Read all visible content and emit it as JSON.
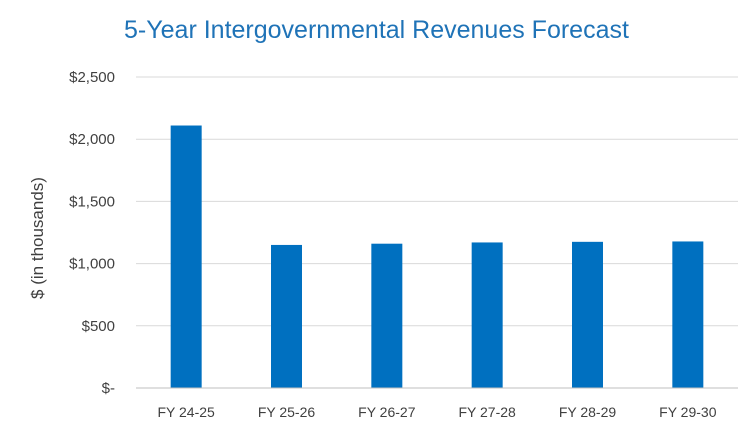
{
  "chart_data": {
    "type": "bar",
    "title": "5-Year Intergovernmental Revenues Forecast",
    "xlabel": "",
    "ylabel": "$ (in thousands)",
    "categories": [
      "FY 24-25",
      "FY 25-26",
      "FY 26-27",
      "FY 27-28",
      "FY 28-29",
      "FY 29-30"
    ],
    "values": [
      2110,
      1150,
      1160,
      1170,
      1175,
      1178
    ],
    "ylim": [
      0,
      2500
    ],
    "yticks": [
      0,
      500,
      1000,
      1500,
      2000,
      2500
    ],
    "ytick_labels": [
      "$-",
      "$500",
      "$1,000",
      "$1,500",
      "$2,000",
      "$2,500"
    ],
    "grid": true,
    "bar_color": "#0070c0",
    "grid_color": "#d9d9d9",
    "axis_color": "#bfbfbf"
  }
}
